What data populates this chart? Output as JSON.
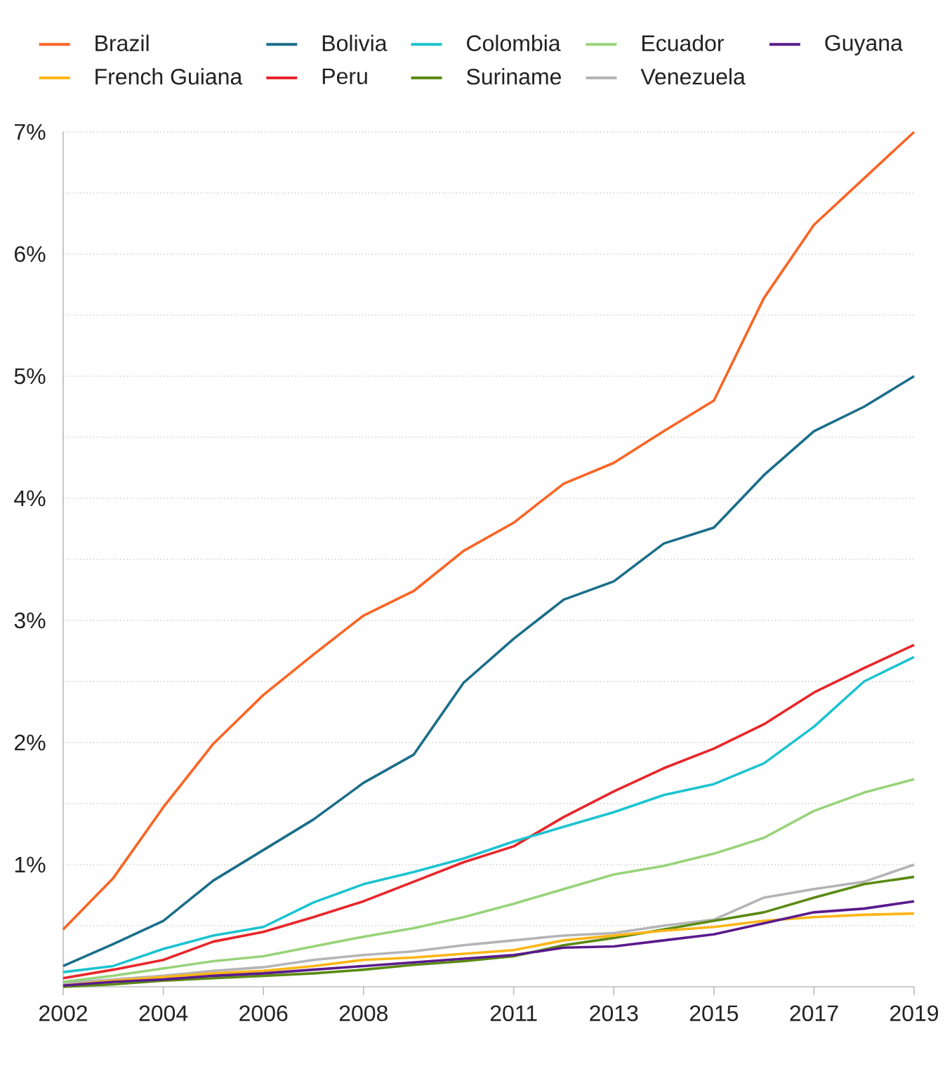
{
  "chart_data": {
    "type": "line",
    "x": [
      2002,
      2003,
      2004,
      2005,
      2006,
      2007,
      2008,
      2009,
      2010,
      2011,
      2012,
      2013,
      2014,
      2015,
      2016,
      2017,
      2018,
      2019
    ],
    "xlim": [
      2002,
      2019
    ],
    "xticks": [
      2002,
      2004,
      2006,
      2008,
      2011,
      2013,
      2015,
      2017,
      2019
    ],
    "ylim": [
      0,
      7
    ],
    "yticks": [
      {
        "value": 0.5,
        "label": null
      },
      {
        "value": 1,
        "label": "1%"
      },
      {
        "value": 1.5,
        "label": null
      },
      {
        "value": 2,
        "label": "2%"
      },
      {
        "value": 2.5,
        "label": null
      },
      {
        "value": 3,
        "label": "3%"
      },
      {
        "value": 3.5,
        "label": null
      },
      {
        "value": 4,
        "label": "4%"
      },
      {
        "value": 4.5,
        "label": null
      },
      {
        "value": 5,
        "label": "5%"
      },
      {
        "value": 5.5,
        "label": null
      },
      {
        "value": 6,
        "label": "6%"
      },
      {
        "value": 6.5,
        "label": null
      },
      {
        "value": 7,
        "label": "7%"
      }
    ],
    "grid": "y",
    "legend": "top",
    "series": [
      {
        "name": "Brazil",
        "color": "#fa6423",
        "values": [
          0.47,
          0.89,
          1.47,
          1.99,
          2.39,
          2.72,
          3.04,
          3.24,
          3.57,
          3.8,
          4.12,
          4.29,
          4.55,
          4.8,
          5.64,
          6.24,
          6.62,
          7.0
        ]
      },
      {
        "name": "Bolivia",
        "color": "#1a6e8a",
        "values": [
          0.17,
          0.35,
          0.54,
          0.87,
          1.12,
          1.37,
          1.67,
          1.9,
          2.49,
          2.85,
          3.17,
          3.32,
          3.63,
          3.76,
          4.19,
          4.55,
          4.75,
          5.0
        ]
      },
      {
        "name": "Colombia",
        "color": "#1cc3d0",
        "values": [
          0.12,
          0.17,
          0.31,
          0.42,
          0.49,
          0.69,
          0.84,
          0.94,
          1.05,
          1.19,
          1.31,
          1.43,
          1.57,
          1.66,
          1.83,
          2.13,
          2.5,
          2.7
        ]
      },
      {
        "name": "Ecuador",
        "color": "#98d37a",
        "values": [
          0.04,
          0.09,
          0.15,
          0.21,
          0.25,
          0.33,
          0.41,
          0.48,
          0.57,
          0.68,
          0.8,
          0.92,
          0.99,
          1.09,
          1.22,
          1.44,
          1.59,
          1.7
        ]
      },
      {
        "name": "Guyana",
        "color": "#5a1a8c",
        "values": [
          0.01,
          0.04,
          0.06,
          0.09,
          0.11,
          0.14,
          0.17,
          0.2,
          0.23,
          0.26,
          0.32,
          0.33,
          0.38,
          0.43,
          0.52,
          0.61,
          0.64,
          0.7
        ]
      },
      {
        "name": "French Guiana",
        "color": "#fdb515",
        "values": [
          0.01,
          0.05,
          0.08,
          0.11,
          0.13,
          0.17,
          0.22,
          0.24,
          0.27,
          0.3,
          0.38,
          0.42,
          0.46,
          0.49,
          0.54,
          0.57,
          0.59,
          0.6
        ]
      },
      {
        "name": "Peru",
        "color": "#e8262a",
        "values": [
          0.07,
          0.14,
          0.22,
          0.37,
          0.45,
          0.57,
          0.7,
          0.86,
          1.02,
          1.15,
          1.39,
          1.6,
          1.79,
          1.95,
          2.15,
          2.41,
          2.61,
          2.8
        ]
      },
      {
        "name": "Suriname",
        "color": "#5a8a12",
        "values": [
          0.0,
          0.02,
          0.05,
          0.07,
          0.09,
          0.11,
          0.14,
          0.18,
          0.21,
          0.25,
          0.34,
          0.4,
          0.47,
          0.54,
          0.61,
          0.73,
          0.84,
          0.9
        ]
      },
      {
        "name": "Venezuela",
        "color": "#b4b4b8",
        "values": [
          0.03,
          0.06,
          0.09,
          0.13,
          0.16,
          0.22,
          0.26,
          0.29,
          0.34,
          0.38,
          0.42,
          0.44,
          0.5,
          0.55,
          0.73,
          0.8,
          0.86,
          1.0
        ]
      }
    ]
  }
}
